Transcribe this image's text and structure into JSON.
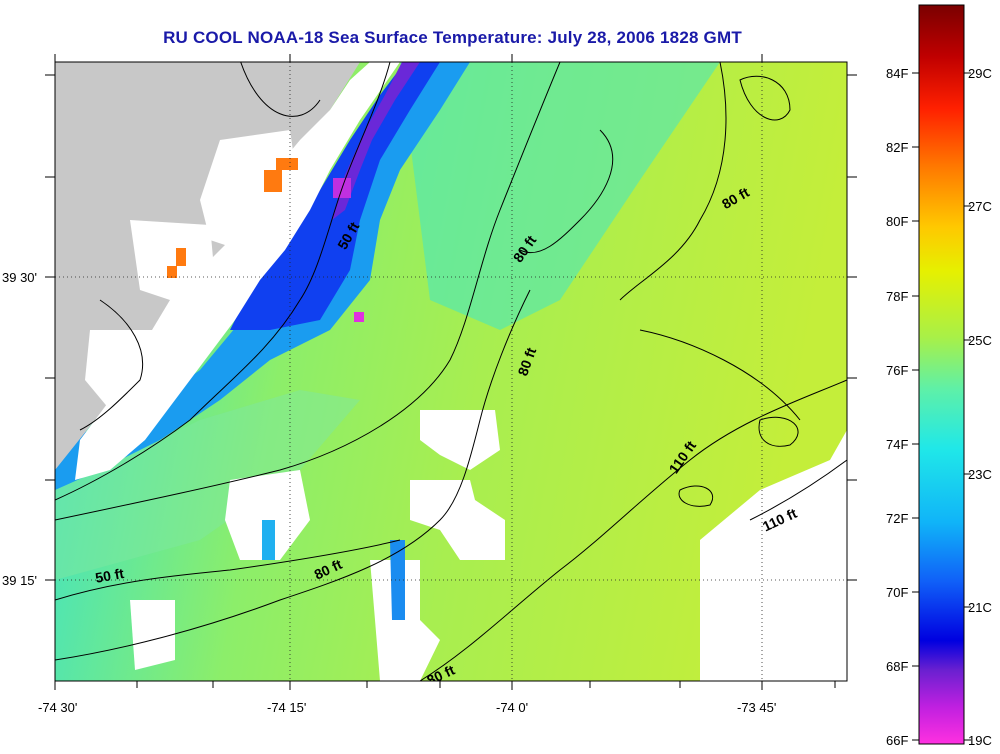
{
  "title": "RU COOL  NOAA-18  Sea Surface Temperature:  July 28, 2006 1828 GMT",
  "x_axis": {
    "ticks": [
      {
        "value": -74.5,
        "label": "-74 30'"
      },
      {
        "value": -74.25,
        "label": "-74 15'"
      },
      {
        "value": -74.0,
        "label": "-74 0'"
      },
      {
        "value": -73.75,
        "label": "-73 45'"
      }
    ]
  },
  "y_axis": {
    "ticks": [
      {
        "value": 39.5,
        "label": "39 30'"
      },
      {
        "value": 39.25,
        "label": "39 15'"
      }
    ]
  },
  "contour_labels": [
    "80 ft",
    "50 ft",
    "80 ft",
    "80 ft",
    "110 ft",
    "110 ft",
    "50 ft",
    "80 ft",
    "80 ft"
  ],
  "colorbar": {
    "fahrenheit": [
      {
        "value": 84,
        "label": "84F"
      },
      {
        "value": 82,
        "label": "82F"
      },
      {
        "value": 80,
        "label": "80F"
      },
      {
        "value": 78,
        "label": "78F"
      },
      {
        "value": 76,
        "label": "76F"
      },
      {
        "value": 74,
        "label": "74F"
      },
      {
        "value": 72,
        "label": "72F"
      },
      {
        "value": 70,
        "label": "70F"
      },
      {
        "value": 68,
        "label": "68F"
      },
      {
        "value": 66,
        "label": "66F"
      }
    ],
    "celsius": [
      {
        "value": 29,
        "label": "29C"
      },
      {
        "value": 27,
        "label": "27C"
      },
      {
        "value": 25,
        "label": "25C"
      },
      {
        "value": 23,
        "label": "23C"
      },
      {
        "value": 21,
        "label": "21C"
      },
      {
        "value": 19,
        "label": "19C"
      }
    ],
    "colors_top_to_bottom": [
      "#7a0000",
      "#d00000",
      "#ff2000",
      "#ff7a00",
      "#ffc800",
      "#e6f000",
      "#a8f048",
      "#5ef0a8",
      "#20e8e8",
      "#10b4f8",
      "#1060f8",
      "#0000e0",
      "#6a20d0",
      "#c020e0",
      "#ff30e0"
    ]
  },
  "legend_colors": {
    "land": "#c8c8c8",
    "no_data": "#ffffff",
    "contour": "#000000"
  }
}
